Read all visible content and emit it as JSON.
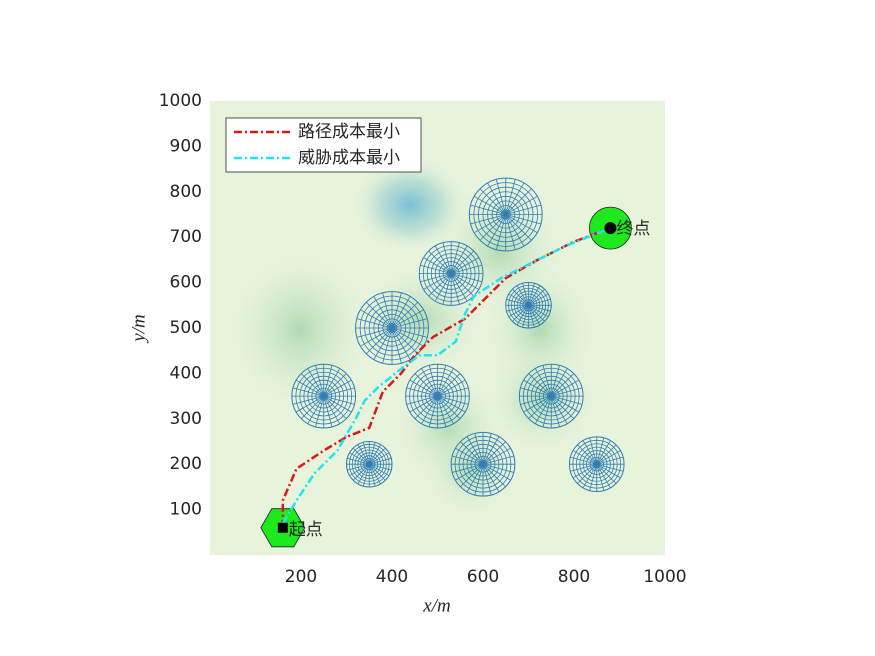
{
  "chart_data": {
    "type": "line",
    "xlabel": "x/m",
    "ylabel": "y/m",
    "xlim": [
      0,
      1000
    ],
    "ylim": [
      0,
      1000
    ],
    "xticks": [
      200,
      400,
      600,
      800,
      1000
    ],
    "yticks": [
      100,
      200,
      300,
      400,
      500,
      600,
      700,
      800,
      900,
      1000
    ],
    "legend": "upper left",
    "series": [
      {
        "name": "路径成本最小",
        "color": "#d7191c",
        "x": [
          160,
          160,
          190,
          250,
          300,
          350,
          380,
          420,
          450,
          490,
          560,
          600,
          650,
          720,
          800,
          880
        ],
        "values": [
          60,
          120,
          190,
          230,
          260,
          280,
          360,
          400,
          440,
          480,
          520,
          560,
          610,
          650,
          690,
          720
        ]
      },
      {
        "name": "威胁成本最小",
        "color": "#22e3ee",
        "x": [
          160,
          190,
          230,
          280,
          320,
          340,
          370,
          420,
          460,
          500,
          540,
          560,
          580,
          640,
          700,
          780,
          880
        ],
        "values": [
          70,
          120,
          180,
          230,
          300,
          340,
          370,
          410,
          440,
          440,
          470,
          530,
          570,
          610,
          640,
          680,
          720
        ]
      }
    ],
    "threats": [
      {
        "x": 650,
        "y": 750,
        "r": 80
      },
      {
        "x": 530,
        "y": 620,
        "r": 70
      },
      {
        "x": 700,
        "y": 550,
        "r": 50
      },
      {
        "x": 400,
        "y": 500,
        "r": 80
      },
      {
        "x": 250,
        "y": 350,
        "r": 70
      },
      {
        "x": 500,
        "y": 350,
        "r": 70
      },
      {
        "x": 750,
        "y": 350,
        "r": 70
      },
      {
        "x": 350,
        "y": 200,
        "r": 50
      },
      {
        "x": 600,
        "y": 200,
        "r": 70
      },
      {
        "x": 850,
        "y": 200,
        "r": 60
      }
    ],
    "threat_color": "#2f7db4",
    "start": {
      "x": 160,
      "y": 60,
      "label": "起点"
    },
    "end": {
      "x": 880,
      "y": 720,
      "label": "终点"
    },
    "marker_color": "#1ee81e"
  }
}
